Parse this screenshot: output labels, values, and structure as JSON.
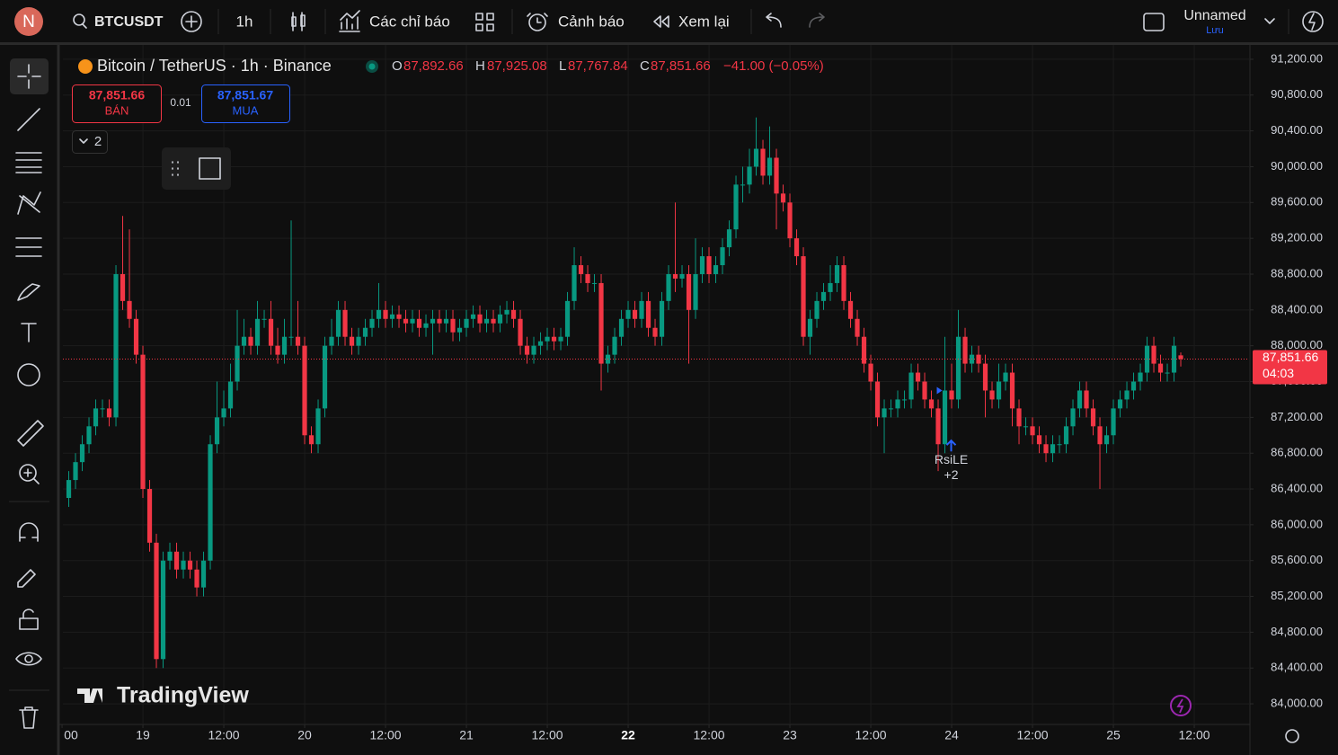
{
  "toolbar": {
    "avatar": "N",
    "symbol": "BTCUSDT",
    "interval": "1h",
    "indicators": "Các chỉ báo",
    "alerts": "Cảnh báo",
    "replay": "Xem lại",
    "layout_name": "Unnamed",
    "save": "Lưu"
  },
  "legend": {
    "title": "Bitcoin / TetherUS · 1h · Binance",
    "open_label": "O",
    "open": "87,892.66",
    "high_label": "H",
    "high": "87,925.08",
    "low_label": "L",
    "low": "87,767.84",
    "close_label": "C",
    "close": "87,851.66",
    "change": "−41.00 (−0.05%)"
  },
  "trade": {
    "sell_price": "87,851.66",
    "sell": "BÁN",
    "quantity": "0.01",
    "buy_price": "87,851.67",
    "buy": "MUA"
  },
  "indicators_count": "2",
  "watermark": "TradingView",
  "chart_data": {
    "type": "candlestick",
    "up_color": "#089981",
    "down_color": "#f23645",
    "grid": true,
    "x": [
      -11,
      -10,
      -9,
      -8,
      -7,
      -6,
      -5,
      -4,
      -3,
      -2,
      -1,
      0,
      1,
      2,
      3,
      4,
      5,
      6,
      7,
      8,
      9,
      10,
      11,
      12,
      13,
      14,
      15,
      16,
      17,
      18,
      19,
      20,
      21,
      22,
      23,
      24,
      25,
      26,
      27,
      28,
      29,
      30,
      31,
      32,
      33,
      34,
      35,
      36,
      37,
      38,
      39,
      40,
      41,
      42,
      43,
      44,
      45,
      46,
      47,
      48,
      49,
      50,
      51,
      52,
      53,
      54,
      55,
      56,
      57,
      58,
      59,
      60,
      61,
      62,
      63,
      64,
      65,
      66,
      67,
      68,
      69,
      70,
      71,
      72,
      73,
      74,
      75,
      76,
      77,
      78,
      79,
      80,
      81,
      82,
      83,
      84,
      85,
      86,
      87,
      88,
      89,
      90,
      91,
      92,
      93,
      94,
      95,
      96,
      97,
      98,
      99,
      100,
      101,
      102,
      103,
      104,
      105,
      106,
      107,
      108,
      109,
      110,
      111,
      112,
      113,
      114,
      115,
      116,
      117,
      118,
      119,
      120,
      121,
      122,
      123,
      124,
      125,
      126,
      127,
      128,
      129,
      130,
      131,
      132,
      133,
      134,
      135,
      136,
      137,
      138,
      139,
      140,
      141,
      142,
      143,
      144,
      145,
      146,
      147,
      148,
      149,
      150,
      151,
      152,
      153,
      154
    ],
    "open": [
      86300,
      86500,
      86700,
      86900,
      87100,
      87300,
      87300,
      87200,
      88800,
      88500,
      88300,
      87900,
      86400,
      85800,
      84500,
      85600,
      85700,
      85500,
      85600,
      85500,
      85300,
      85600,
      86900,
      87200,
      87300,
      87600,
      88000,
      88100,
      88000,
      88300,
      88300,
      88000,
      87900,
      88100,
      88100,
      88000,
      87000,
      86900,
      87300,
      88000,
      88100,
      88400,
      88100,
      88000,
      88100,
      88200,
      88300,
      88400,
      88300,
      88350,
      88300,
      88250,
      88300,
      88200,
      88250,
      88300,
      88250,
      88300,
      88150,
      88200,
      88300,
      88350,
      88250,
      88300,
      88250,
      88350,
      88400,
      88300,
      88000,
      87900,
      88000,
      88050,
      88100,
      88050,
      88100,
      88500,
      88900,
      88800,
      88700,
      88700,
      87800,
      87900,
      88100,
      88300,
      88400,
      88300,
      88500,
      88200,
      88100,
      88500,
      88800,
      88750,
      88800,
      88400,
      88800,
      89000,
      88800,
      88900,
      89100,
      89300,
      89800,
      89800,
      90000,
      90200,
      89900,
      90100,
      89700,
      89600,
      89200,
      89000,
      88100,
      88300,
      88500,
      88600,
      88700,
      88900,
      88500,
      88300,
      88100,
      87800,
      87600,
      87200,
      87300,
      87300,
      87400,
      87400,
      87700,
      87600,
      87400,
      87300,
      86900,
      87500,
      87400,
      88100,
      87800,
      87900,
      87800,
      87500,
      87400,
      87600,
      87700,
      87300,
      87100,
      87100,
      87000,
      86900,
      86800,
      86900,
      86900,
      87100,
      87300,
      87500,
      87300,
      87100,
      86900,
      87000,
      87300,
      87400,
      87500,
      87600,
      87700,
      88000,
      87800,
      87700,
      87700,
      87892.66
    ],
    "high": [
      86600,
      86800,
      87000,
      87200,
      87400,
      87400,
      87400,
      88900,
      89450,
      89300,
      88400,
      88000,
      86500,
      85900,
      85700,
      85800,
      85800,
      85700,
      85700,
      85600,
      85700,
      87000,
      87600,
      87500,
      87800,
      88400,
      88300,
      88200,
      88500,
      88400,
      88500,
      88200,
      88300,
      89400,
      88500,
      88100,
      87100,
      87400,
      88100,
      88300,
      88500,
      88500,
      88200,
      88200,
      88300,
      88400,
      88700,
      88500,
      88450,
      88450,
      88400,
      88400,
      88400,
      88350,
      88400,
      88400,
      88400,
      88400,
      88300,
      88400,
      88450,
      88450,
      88400,
      88400,
      88450,
      88500,
      88500,
      88400,
      88100,
      88100,
      88150,
      88200,
      88200,
      88200,
      88600,
      89100,
      89000,
      88900,
      88800,
      88800,
      88000,
      88200,
      88400,
      88500,
      88500,
      88600,
      88600,
      88300,
      88600,
      88900,
      89600,
      88900,
      88900,
      89200,
      89100,
      89100,
      89000,
      89200,
      89400,
      89900,
      90000,
      90200,
      90550,
      90300,
      90450,
      90200,
      89800,
      89700,
      89300,
      89100,
      88400,
      88600,
      88700,
      88900,
      89000,
      89000,
      88600,
      88400,
      88200,
      87900,
      87700,
      87400,
      87400,
      87500,
      87500,
      87800,
      87800,
      87700,
      87500,
      87400,
      88100,
      87800,
      88400,
      88200,
      88000,
      88000,
      87900,
      87600,
      87800,
      87800,
      87800,
      87400,
      87200,
      87200,
      87100,
      87000,
      87000,
      87000,
      87200,
      87400,
      87600,
      87600,
      87400,
      87200,
      87100,
      87400,
      87500,
      87600,
      87700,
      87800,
      88100,
      88100,
      87900,
      87800,
      88100,
      87925.08
    ],
    "low": [
      86200,
      86400,
      86600,
      86800,
      87000,
      87200,
      87100,
      87100,
      88400,
      88200,
      87800,
      86300,
      85700,
      84400,
      84400,
      85500,
      85400,
      85400,
      85400,
      85200,
      85200,
      85500,
      86800,
      87100,
      87200,
      87500,
      87900,
      87900,
      87900,
      88200,
      87900,
      87800,
      87800,
      88000,
      87900,
      86900,
      86800,
      86800,
      87200,
      87900,
      88000,
      88000,
      87900,
      87900,
      88000,
      88100,
      88200,
      88200,
      88200,
      88200,
      88150,
      88150,
      88100,
      88100,
      87900,
      88150,
      88150,
      88050,
      88050,
      88100,
      88200,
      88150,
      88150,
      88150,
      88150,
      88250,
      88200,
      87900,
      87800,
      87800,
      87900,
      87950,
      87950,
      87950,
      88000,
      88400,
      88700,
      88600,
      88600,
      87500,
      87700,
      87800,
      88000,
      88200,
      88200,
      88200,
      88100,
      88000,
      88000,
      88400,
      88600,
      88650,
      87800,
      88300,
      88700,
      88700,
      88700,
      88800,
      89000,
      89200,
      89600,
      89700,
      89900,
      89800,
      89800,
      89300,
      89500,
      89100,
      88900,
      88000,
      87900,
      88200,
      88400,
      88500,
      88600,
      88400,
      88200,
      88000,
      87700,
      87500,
      87100,
      86800,
      87200,
      87200,
      87300,
      87300,
      87500,
      87300,
      87200,
      86600,
      86800,
      87300,
      87300,
      87700,
      87700,
      87700,
      87200,
      87300,
      87300,
      87500,
      87100,
      86900,
      87000,
      86900,
      86800,
      86700,
      86700,
      86800,
      86800,
      87000,
      87200,
      87200,
      87000,
      86400,
      86800,
      86900,
      87200,
      87300,
      87400,
      87500,
      87600,
      87700,
      87600,
      87600,
      87600,
      87767.84
    ],
    "close": [
      86500,
      86700,
      86900,
      87100,
      87300,
      87300,
      87200,
      88800,
      88500,
      88300,
      87900,
      86400,
      85800,
      84500,
      85600,
      85700,
      85500,
      85600,
      85500,
      85300,
      85600,
      86900,
      87200,
      87300,
      87600,
      88000,
      88100,
      88000,
      88300,
      88300,
      88000,
      87900,
      88100,
      88100,
      88000,
      87000,
      86900,
      87300,
      88000,
      88100,
      88400,
      88100,
      88000,
      88100,
      88200,
      88300,
      88400,
      88300,
      88350,
      88300,
      88250,
      88300,
      88200,
      88250,
      88300,
      88250,
      88300,
      88150,
      88200,
      88300,
      88350,
      88250,
      88300,
      88250,
      88350,
      88400,
      88300,
      88000,
      87900,
      88000,
      88050,
      88100,
      88050,
      88100,
      88500,
      88900,
      88800,
      88700,
      88700,
      87800,
      87900,
      88100,
      88300,
      88400,
      88300,
      88500,
      88200,
      88100,
      88500,
      88800,
      88750,
      88800,
      88400,
      88800,
      89000,
      88800,
      88900,
      89100,
      89300,
      89800,
      89800,
      90000,
      90200,
      89900,
      90100,
      89700,
      89600,
      89200,
      89000,
      88100,
      88300,
      88500,
      88600,
      88700,
      88900,
      88500,
      88300,
      88100,
      87800,
      87600,
      87200,
      87300,
      87300,
      87400,
      87400,
      87700,
      87600,
      87400,
      87300,
      86900,
      87500,
      87400,
      88100,
      87800,
      87900,
      87800,
      87500,
      87400,
      87600,
      87700,
      87300,
      87100,
      87100,
      87000,
      86900,
      86800,
      86900,
      86900,
      87100,
      87300,
      87500,
      87300,
      87100,
      86900,
      87000,
      87300,
      87400,
      87500,
      87600,
      87700,
      88000,
      87800,
      87700,
      87700,
      88000,
      87851.66
    ],
    "xlim": [
      -11.87,
      164.13
    ],
    "xticks": [
      {
        "value": -12,
        "label": "00"
      },
      {
        "value": 0,
        "label": "19"
      },
      {
        "value": 12,
        "label": "12:00"
      },
      {
        "value": 24,
        "label": "20"
      },
      {
        "value": 36,
        "label": "12:00"
      },
      {
        "value": 48,
        "label": "21"
      },
      {
        "value": 60,
        "label": "12:00"
      },
      {
        "value": 72,
        "label": "22"
      },
      {
        "value": 84,
        "label": "12:00"
      },
      {
        "value": 96,
        "label": "23"
      },
      {
        "value": 108,
        "label": "12:00"
      },
      {
        "value": 120,
        "label": "24"
      },
      {
        "value": 132,
        "label": "12:00"
      },
      {
        "value": 144,
        "label": "25"
      },
      {
        "value": 156,
        "label": "12:00"
      }
    ],
    "ylim": [
      83780,
      91360
    ],
    "yticks": [
      {
        "value": 84000,
        "label": "84,000.00"
      },
      {
        "value": 84400,
        "label": "84,400.00"
      },
      {
        "value": 84800,
        "label": "84,800.00"
      },
      {
        "value": 85200,
        "label": "85,200.00"
      },
      {
        "value": 85600,
        "label": "85,600.00"
      },
      {
        "value": 86000,
        "label": "86,000.00"
      },
      {
        "value": 86400,
        "label": "86,400.00"
      },
      {
        "value": 86800,
        "label": "86,800.00"
      },
      {
        "value": 87200,
        "label": "87,200.00"
      },
      {
        "value": 87600,
        "label": "87,600.00"
      },
      {
        "value": 88000,
        "label": "88,000.00"
      },
      {
        "value": 88400,
        "label": "88,400.00"
      },
      {
        "value": 88800,
        "label": "88,800.00"
      },
      {
        "value": 89200,
        "label": "89,200.00"
      },
      {
        "value": 89600,
        "label": "89,600.00"
      },
      {
        "value": 90000,
        "label": "90,000.00"
      },
      {
        "value": 90400,
        "label": "90,400.00"
      },
      {
        "value": 90800,
        "label": "90,800.00"
      },
      {
        "value": 91200,
        "label": "91,200.00"
      }
    ],
    "last_price_label": "87,851.66",
    "countdown": "04:03",
    "annotation": {
      "text": "RsiLE",
      "count": "+2"
    }
  }
}
